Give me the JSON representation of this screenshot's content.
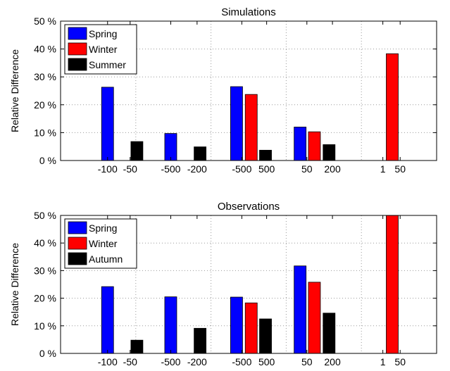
{
  "chart_data": [
    {
      "type": "bar",
      "title": "Simulations",
      "ylabel": "Relative Difference",
      "ylim": [
        0,
        50
      ],
      "yticks": [
        0,
        10,
        20,
        30,
        40,
        50
      ],
      "ytick_labels": [
        "0 %",
        "10 %",
        "20 %",
        "30 %",
        "40 %",
        "50 %"
      ],
      "xlim": [
        0,
        1
      ],
      "grid": true,
      "legend": {
        "position": "top-left"
      },
      "series": [
        {
          "name": "Spring",
          "color": "#0000ff"
        },
        {
          "name": "Winter",
          "color": "#ff0000"
        },
        {
          "name": "Summer",
          "color": "#000000"
        }
      ],
      "xticks": [
        {
          "at": 0.125,
          "label": "-100"
        },
        {
          "at": 0.185,
          "label": "-50"
        },
        {
          "at": 0.293,
          "label": "-500"
        },
        {
          "at": 0.363,
          "label": "-200"
        },
        {
          "at": 0.482,
          "label": "-500"
        },
        {
          "at": 0.548,
          "label": "500"
        },
        {
          "at": 0.655,
          "label": "50"
        },
        {
          "at": 0.723,
          "label": "200"
        },
        {
          "at": 0.857,
          "label": "1"
        },
        {
          "at": 0.903,
          "label": "50"
        }
      ],
      "bars": [
        {
          "series": 0,
          "x": 0.125,
          "value": 26.3
        },
        {
          "series": 2,
          "x": 0.203,
          "value": 6.8
        },
        {
          "series": 0,
          "x": 0.293,
          "value": 9.7
        },
        {
          "series": 2,
          "x": 0.371,
          "value": 4.9
        },
        {
          "series": 0,
          "x": 0.468,
          "value": 26.5
        },
        {
          "series": 1,
          "x": 0.507,
          "value": 23.7
        },
        {
          "series": 2,
          "x": 0.545,
          "value": 3.7
        },
        {
          "series": 0,
          "x": 0.637,
          "value": 12.0
        },
        {
          "series": 1,
          "x": 0.675,
          "value": 10.3
        },
        {
          "series": 2,
          "x": 0.714,
          "value": 5.7
        },
        {
          "series": 1,
          "x": 0.882,
          "value": 38.3
        }
      ]
    },
    {
      "type": "bar",
      "title": "Observations",
      "ylabel": "Relative Difference",
      "ylim": [
        0,
        50
      ],
      "yticks": [
        0,
        10,
        20,
        30,
        40,
        50
      ],
      "ytick_labels": [
        "0 %",
        "10 %",
        "20 %",
        "30 %",
        "40 %",
        "50 %"
      ],
      "xlim": [
        0,
        1
      ],
      "grid": true,
      "legend": {
        "position": "top-left"
      },
      "series": [
        {
          "name": "Spring",
          "color": "#0000ff"
        },
        {
          "name": "Winter",
          "color": "#ff0000"
        },
        {
          "name": "Autumn",
          "color": "#000000"
        }
      ],
      "xticks": [
        {
          "at": 0.125,
          "label": "-100"
        },
        {
          "at": 0.185,
          "label": "-50"
        },
        {
          "at": 0.293,
          "label": "-500"
        },
        {
          "at": 0.363,
          "label": "-200"
        },
        {
          "at": 0.482,
          "label": "-500"
        },
        {
          "at": 0.548,
          "label": "500"
        },
        {
          "at": 0.655,
          "label": "50"
        },
        {
          "at": 0.723,
          "label": "200"
        },
        {
          "at": 0.857,
          "label": "1"
        },
        {
          "at": 0.903,
          "label": "50"
        }
      ],
      "bars": [
        {
          "series": 0,
          "x": 0.125,
          "value": 24.2
        },
        {
          "series": 2,
          "x": 0.203,
          "value": 4.8
        },
        {
          "series": 0,
          "x": 0.293,
          "value": 20.5
        },
        {
          "series": 2,
          "x": 0.371,
          "value": 9.1
        },
        {
          "series": 0,
          "x": 0.468,
          "value": 20.4
        },
        {
          "series": 1,
          "x": 0.507,
          "value": 18.3
        },
        {
          "series": 2,
          "x": 0.545,
          "value": 12.5
        },
        {
          "series": 0,
          "x": 0.637,
          "value": 31.7
        },
        {
          "series": 1,
          "x": 0.675,
          "value": 25.8
        },
        {
          "series": 2,
          "x": 0.714,
          "value": 14.6
        },
        {
          "series": 1,
          "x": 0.882,
          "value": 50.0
        }
      ]
    }
  ]
}
